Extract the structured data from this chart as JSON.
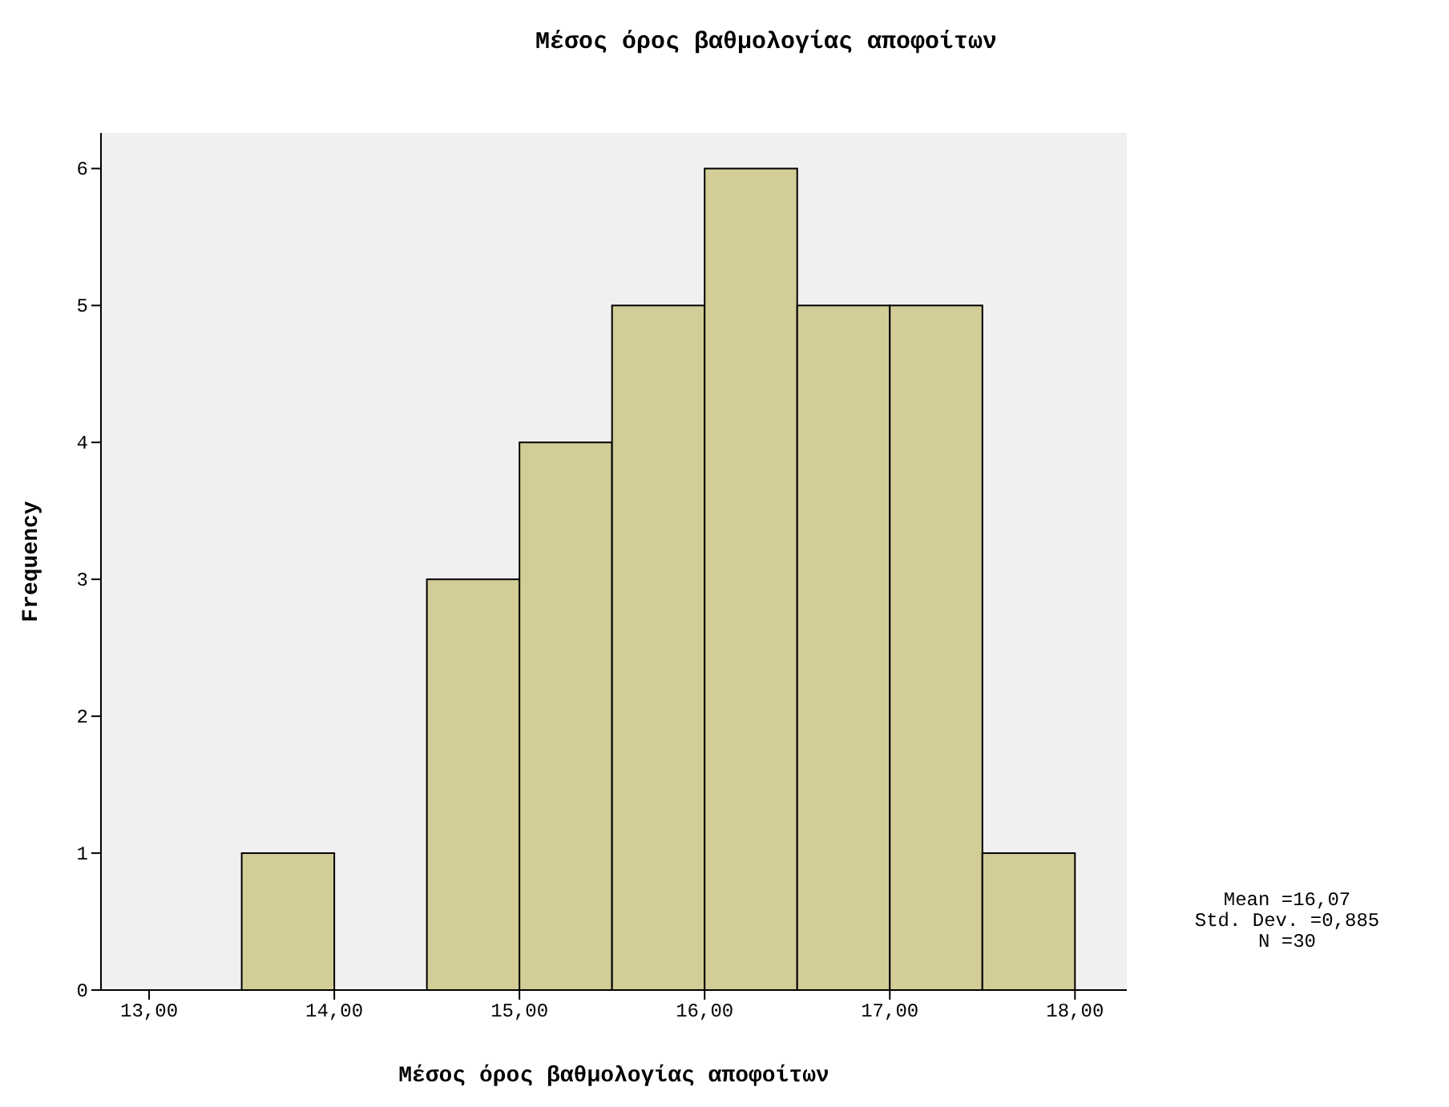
{
  "chart_data": {
    "type": "histogram",
    "title": "Μέσος όρος βαθμολογίας αποφοίτων",
    "xlabel": "Μέσος όρος βαθμολογίας αποφοίτων",
    "ylabel": "Frequency",
    "bins": [
      13.5,
      14,
      14.5,
      15,
      15.5,
      16,
      16.5,
      17,
      17.5,
      18
    ],
    "values": [
      1,
      0,
      3,
      4,
      5,
      6,
      5,
      5,
      1
    ],
    "color": "#d3ce97",
    "xlim": [
      12.74,
      18.28
    ],
    "xticks": [
      {
        "value": 13,
        "label": "13,00"
      },
      {
        "value": 14,
        "label": "14,00"
      },
      {
        "value": 15,
        "label": "15,00"
      },
      {
        "value": 16,
        "label": "16,00"
      },
      {
        "value": 17,
        "label": "17,00"
      },
      {
        "value": 18,
        "label": "18,00"
      }
    ],
    "ylim": [
      0,
      6.26
    ],
    "yticks": [
      0,
      1,
      2,
      3,
      4,
      5,
      6
    ],
    "annotations": [
      "Mean =16,07",
      "Std. Dev. =0,885",
      "N =30"
    ]
  }
}
